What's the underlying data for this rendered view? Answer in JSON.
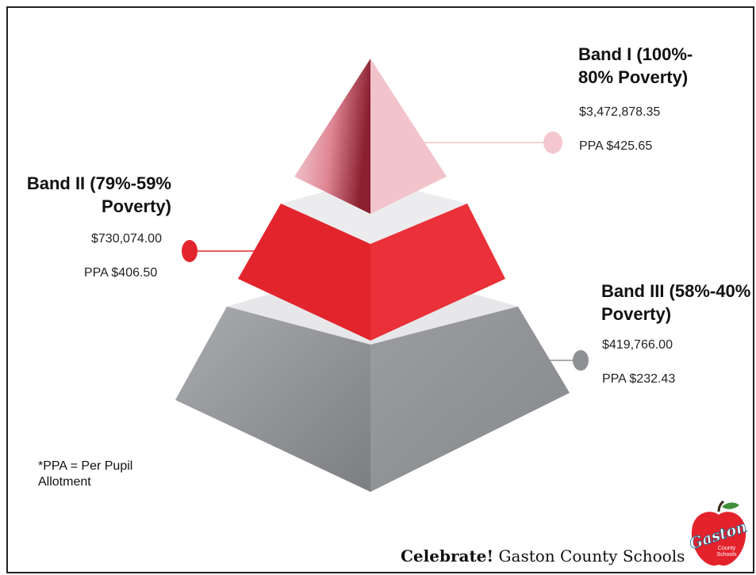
{
  "bands": [
    {
      "title_line1": "Band I (100%-",
      "title_line2": "80% Poverty)",
      "amount": "$3,472,878.35",
      "ppa": "PPA $425.65",
      "color": "#f2c1c8"
    },
    {
      "title_line1": "Band II (79%-59%",
      "title_line2": "Poverty)",
      "amount": "$730,074.00",
      "ppa": "PPA $406.50",
      "color": "#e0202a"
    },
    {
      "title_line1": "Band III (58%-40%",
      "title_line2": "Poverty)",
      "amount": "$419,766.00",
      "ppa": "PPA $232.43",
      "color": "#8e9094"
    }
  ],
  "footnote": "*PPA = Per Pupil Allotment",
  "footer": {
    "bold": "Celebrate!",
    "text": "Gaston County Schools"
  },
  "logo": {
    "text": "Gaston",
    "sub1": "County",
    "sub2": "Schools",
    "color": "#e4222c"
  }
}
